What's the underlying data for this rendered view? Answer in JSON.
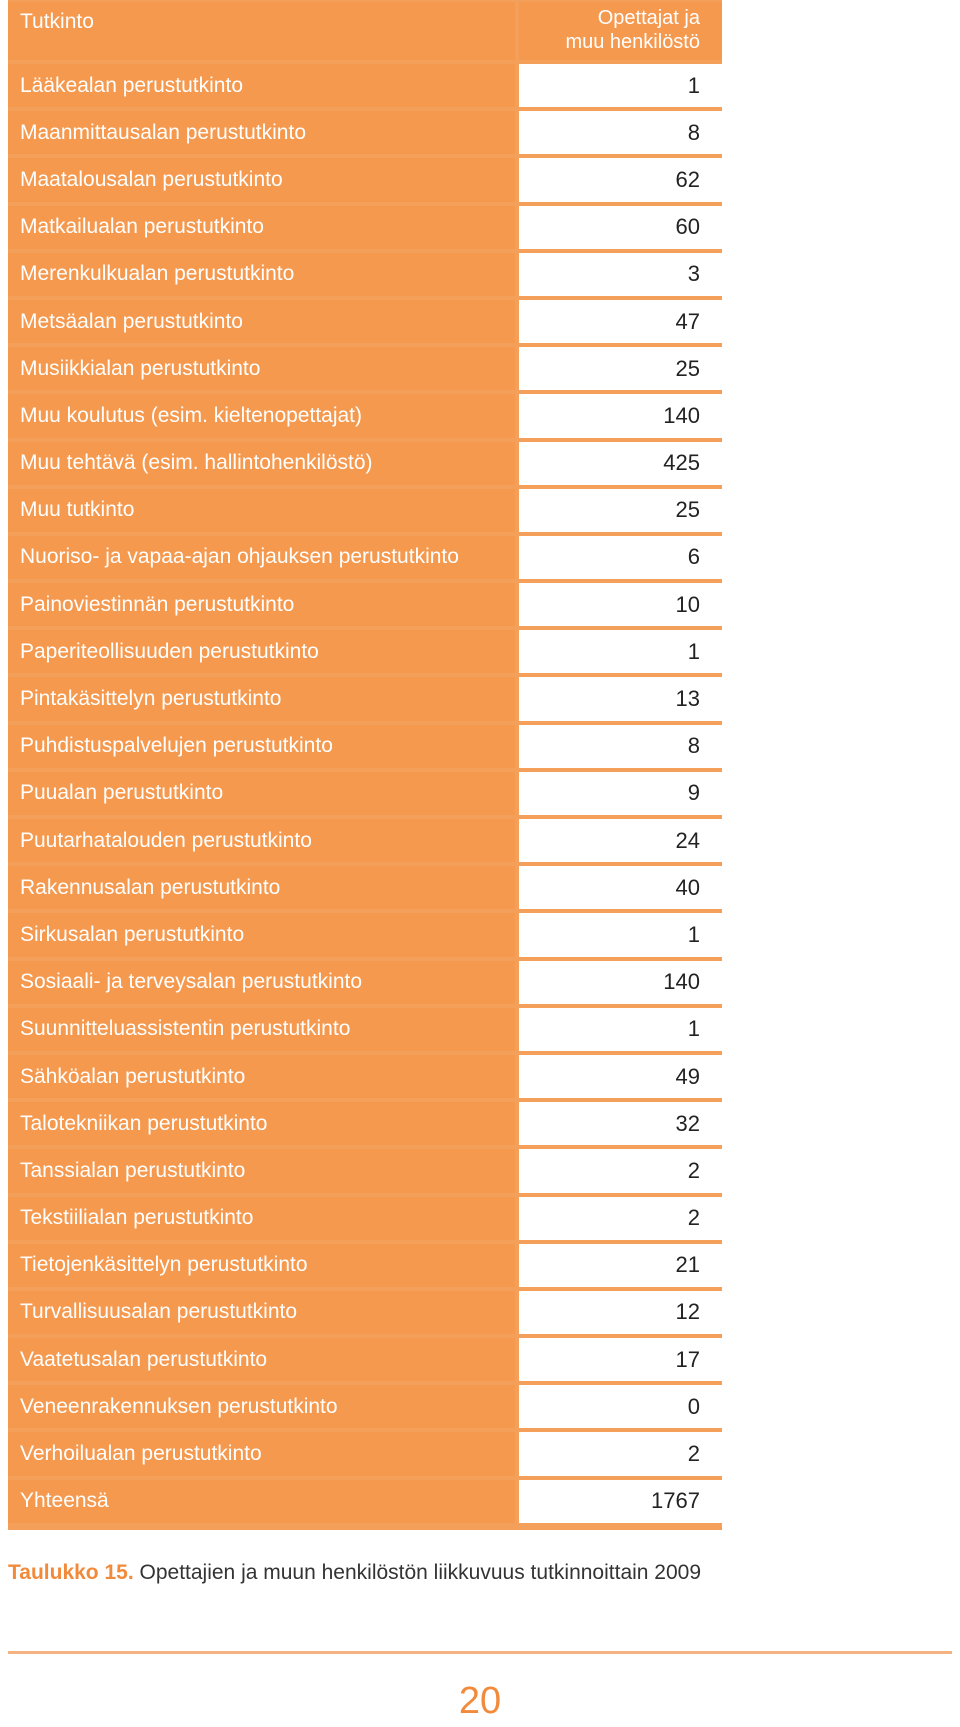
{
  "table": {
    "header": {
      "tutkinto": "Tutkinto",
      "value_line1": "Opettajat ja",
      "value_line2": "muu henkilöstö"
    },
    "rows": [
      {
        "name": "Lääkealan perustutkinto",
        "value": "1"
      },
      {
        "name": "Maanmittausalan perustutkinto",
        "value": "8"
      },
      {
        "name": "Maatalousalan perustutkinto",
        "value": "62"
      },
      {
        "name": "Matkailualan perustutkinto",
        "value": "60"
      },
      {
        "name": "Merenkulkualan perustutkinto",
        "value": "3"
      },
      {
        "name": "Metsäalan perustutkinto",
        "value": "47"
      },
      {
        "name": "Musiikkialan perustutkinto",
        "value": "25"
      },
      {
        "name": "Muu koulutus (esim. kieltenopettajat)",
        "value": "140"
      },
      {
        "name": "Muu tehtävä (esim. hallintohenkilöstö)",
        "value": "425"
      },
      {
        "name": "Muu tutkinto",
        "value": "25"
      },
      {
        "name": "Nuoriso- ja vapaa-ajan ohjauksen perustutkinto",
        "value": "6"
      },
      {
        "name": "Painoviestinnän perustutkinto",
        "value": "10"
      },
      {
        "name": "Paperiteollisuuden perustutkinto",
        "value": "1"
      },
      {
        "name": "Pintakäsittelyn perustutkinto",
        "value": "13"
      },
      {
        "name": "Puhdistuspalvelujen perustutkinto",
        "value": "8"
      },
      {
        "name": "Puualan perustutkinto",
        "value": "9"
      },
      {
        "name": "Puutarhatalouden perustutkinto",
        "value": "24"
      },
      {
        "name": "Rakennusalan perustutkinto",
        "value": "40"
      },
      {
        "name": "Sirkusalan perustutkinto",
        "value": "1"
      },
      {
        "name": "Sosiaali- ja terveysalan perustutkinto",
        "value": "140"
      },
      {
        "name": "Suunnitteluassistentin perustutkinto",
        "value": "1"
      },
      {
        "name": "Sähköalan perustutkinto",
        "value": "49"
      },
      {
        "name": "Talotekniikan perustutkinto",
        "value": "32"
      },
      {
        "name": "Tanssialan perustutkinto",
        "value": "2"
      },
      {
        "name": "Tekstiilialan perustutkinto",
        "value": "2"
      },
      {
        "name": "Tietojenkäsittelyn perustutkinto",
        "value": "21"
      },
      {
        "name": "Turvallisuusalan perustutkinto",
        "value": "12"
      },
      {
        "name": "Vaatetusalan perustutkinto",
        "value": "17"
      },
      {
        "name": "Veneenrakennuksen perustutkinto",
        "value": "0"
      },
      {
        "name": "Verhoilualan perustutkinto",
        "value": "2"
      },
      {
        "name": "Yhteensä",
        "value": "1767"
      }
    ]
  },
  "caption": {
    "label": "Taulukko 15.",
    "text": "Opettajien ja muun henkilöstön liikkuvuus tutkinnoittain 2009"
  },
  "page_number": "20",
  "colors": {
    "accent": "#f5994f",
    "caption_label": "#f28a3b",
    "divider": "#f5b383"
  }
}
